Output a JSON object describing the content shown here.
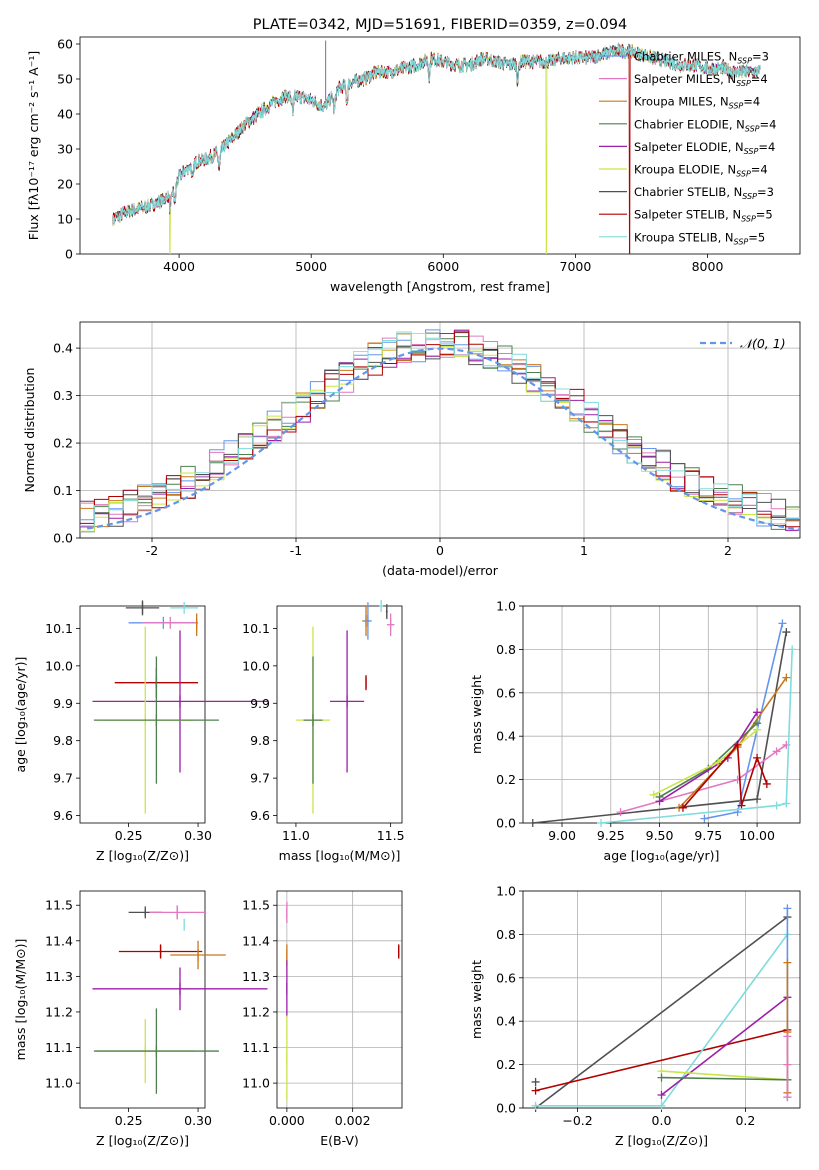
{
  "colors": {
    "chabrier_miles": "#6495ed",
    "salpeter_miles": "#e377c2",
    "kroupa_miles": "#c8781a",
    "chabrier_elodie": "#4f7f4f",
    "salpeter_elodie": "#9b1fa8",
    "kroupa_elodie": "#c8e646",
    "chabrier_stelib": "#505050",
    "salpeter_stelib": "#b00000",
    "kroupa_stelib": "#7fdcdc",
    "gaussian": "#6495ed",
    "grid": "#b0b0b0"
  },
  "chart_data": [
    {
      "id": "spectrum",
      "type": "line",
      "title": "PLATE=0342, MJD=51691, FIBERID=0359, z=0.094",
      "xlabel": "wavelength [Angstrom, rest frame]",
      "ylabel": "Flux [fλ10⁻¹⁷ erg cm⁻² s⁻¹ A⁻¹]",
      "xlim": [
        3250,
        8700
      ],
      "ylim": [
        0,
        62
      ],
      "xticks": [
        4000,
        5000,
        6000,
        7000,
        8000
      ],
      "yticks": [
        0,
        10,
        20,
        30,
        40,
        50,
        60
      ],
      "legend_position": "top-right",
      "legend": [
        {
          "label": "Chabrier MILES, N",
          "sub": "SSP",
          "tail": "=3",
          "color_key": "chabrier_miles"
        },
        {
          "label": "Salpeter MILES, N",
          "sub": "SSP",
          "tail": "=4",
          "color_key": "salpeter_miles"
        },
        {
          "label": "Kroupa MILES, N",
          "sub": "SSP",
          "tail": "=4",
          "color_key": "kroupa_miles"
        },
        {
          "label": "Chabrier ELODIE, N",
          "sub": "SSP",
          "tail": "=4",
          "color_key": "chabrier_elodie"
        },
        {
          "label": "Salpeter ELODIE, N",
          "sub": "SSP",
          "tail": "=4",
          "color_key": "salpeter_elodie"
        },
        {
          "label": "Kroupa ELODIE, N",
          "sub": "SSP",
          "tail": "=4",
          "color_key": "kroupa_elodie"
        },
        {
          "label": "Chabrier STELIB, N",
          "sub": "SSP",
          "tail": "=3",
          "color_key": "chabrier_stelib"
        },
        {
          "label": "Salpeter STELIB, N",
          "sub": "SSP",
          "tail": "=5",
          "color_key": "salpeter_stelib"
        },
        {
          "label": "Kroupa STELIB, N",
          "sub": "SSP",
          "tail": "=5",
          "color_key": "kroupa_stelib"
        }
      ],
      "continuum": [
        [
          3500,
          10
        ],
        [
          3600,
          12
        ],
        [
          3700,
          13
        ],
        [
          3800,
          14
        ],
        [
          3900,
          16
        ],
        [
          3950,
          18
        ],
        [
          4000,
          22
        ],
        [
          4100,
          26
        ],
        [
          4200,
          27
        ],
        [
          4300,
          29
        ],
        [
          4400,
          33
        ],
        [
          4500,
          37
        ],
        [
          4600,
          40
        ],
        [
          4700,
          43
        ],
        [
          4800,
          45
        ],
        [
          4900,
          45
        ],
        [
          5000,
          44
        ],
        [
          5100,
          42
        ],
        [
          5200,
          47
        ],
        [
          5300,
          49
        ],
        [
          5400,
          50
        ],
        [
          5500,
          52
        ],
        [
          5600,
          52
        ],
        [
          5700,
          53
        ],
        [
          5800,
          54
        ],
        [
          5900,
          56
        ],
        [
          6000,
          55
        ],
        [
          6100,
          54
        ],
        [
          6200,
          54
        ],
        [
          6300,
          56
        ],
        [
          6400,
          55
        ],
        [
          6500,
          54
        ],
        [
          6600,
          55
        ],
        [
          6700,
          55
        ],
        [
          6800,
          55
        ],
        [
          6900,
          56
        ],
        [
          7000,
          56
        ],
        [
          7100,
          56
        ],
        [
          7200,
          57
        ],
        [
          7300,
          58
        ],
        [
          7400,
          58
        ],
        [
          7500,
          57
        ],
        [
          7600,
          56
        ],
        [
          7700,
          55
        ],
        [
          7800,
          54
        ],
        [
          7900,
          54
        ],
        [
          8000,
          53
        ],
        [
          8100,
          53
        ],
        [
          8200,
          52
        ],
        [
          8300,
          52
        ],
        [
          8400,
          52
        ]
      ],
      "absorption_lines": [
        3934,
        3969,
        4102,
        4304,
        4861,
        5175,
        5270,
        5893,
        6563
      ],
      "spike": {
        "x": 5110,
        "y": 61
      },
      "edge_drops": [
        {
          "series": "kroupa_elodie",
          "x": 3930
        },
        {
          "series": "kroupa_elodie",
          "x": 6780
        },
        {
          "series": "salpeter_stelib",
          "x": 7410
        }
      ]
    },
    {
      "id": "residuals",
      "type": "histogram",
      "xlabel": "(data-model)/error",
      "ylabel": "Normed distribution",
      "xlim": [
        -2.5,
        2.5
      ],
      "ylim": [
        0,
        0.455
      ],
      "xticks": [
        -2,
        -1,
        0,
        1,
        2
      ],
      "yticks": [
        0.0,
        0.1,
        0.2,
        0.3,
        0.4
      ],
      "legend_position": "top-right",
      "legend_label": "𝒩(0, 1)",
      "bin_width": 0.1,
      "bin_start": -2.5
    },
    {
      "id": "z_age",
      "type": "scatter",
      "xlabel": "Z [log₁₀(Z/Z⊙)]",
      "ylabel": "age  [log₁₀(age/yr)]",
      "xlim": [
        0.215,
        0.305
      ],
      "ylim": [
        9.58,
        10.16
      ],
      "xticks": [
        0.25,
        0.3
      ],
      "yticks": [
        9.6,
        9.7,
        9.8,
        9.9,
        10.0,
        10.1
      ],
      "points": [
        {
          "color_key": "chabrier_stelib",
          "x": 0.26,
          "xerr": 0.012,
          "y": 10.155,
          "yerr": 0.02
        },
        {
          "color_key": "kroupa_stelib",
          "x": 0.29,
          "xerr": 0.01,
          "y": 10.155,
          "yerr": 0.0
        },
        {
          "color_key": "chabrier_miles",
          "x": 0.275,
          "xerr": 0.025,
          "y": 10.115,
          "yerr": 0.0
        },
        {
          "color_key": "salpeter_miles",
          "x": 0.28,
          "xerr": 0.02,
          "y": 10.115,
          "yerr": 0.0
        },
        {
          "color_key": "kroupa_miles",
          "x": 0.299,
          "xerr": 0.0,
          "y": 10.11,
          "yerr": 0.03
        },
        {
          "color_key": "salpeter_stelib",
          "x": 0.27,
          "xerr": 0.03,
          "y": 9.955,
          "yerr": 0.04
        },
        {
          "color_key": "salpeter_elodie",
          "x": 0.287,
          "xerr": 0.063,
          "y": 9.905,
          "yerr": 0.19
        },
        {
          "color_key": "kroupa_elodie",
          "x": 0.262,
          "xerr": 0.035,
          "y": 9.855,
          "yerr": 0.25
        },
        {
          "color_key": "chabrier_elodie",
          "x": 0.27,
          "xerr": 0.045,
          "y": 9.855,
          "yerr": 0.17
        }
      ]
    },
    {
      "id": "mass_age",
      "type": "scatter",
      "xlabel": "mass [log₁₀(M/M⊙)]",
      "ylabel": "",
      "xlim": [
        10.9,
        11.56
      ],
      "ylim": [
        9.58,
        10.16
      ],
      "xticks": [
        11.0,
        11.5
      ],
      "yticks": [
        9.6,
        9.7,
        9.8,
        9.9,
        10.0,
        10.1
      ],
      "points": [
        {
          "color_key": "kroupa_stelib",
          "x": 11.45,
          "xerr": 0.01,
          "y": 10.16,
          "yerr": 0.0
        },
        {
          "color_key": "chabrier_stelib",
          "x": 11.48,
          "xerr": 0.005,
          "y": 10.145,
          "yerr": 0.02
        },
        {
          "color_key": "kroupa_miles",
          "x": 11.37,
          "xerr": 0.02,
          "y": 10.12,
          "yerr": 0.04
        },
        {
          "color_key": "chabrier_miles",
          "x": 11.38,
          "xerr": 0.02,
          "y": 10.12,
          "yerr": 0.05
        },
        {
          "color_key": "salpeter_miles",
          "x": 11.5,
          "xerr": 0.02,
          "y": 10.11,
          "yerr": 0.03
        },
        {
          "color_key": "salpeter_stelib",
          "x": 11.37,
          "xerr": 0.0,
          "y": 9.955,
          "yerr": 0.02
        },
        {
          "color_key": "salpeter_elodie",
          "x": 11.27,
          "xerr": 0.09,
          "y": 9.905,
          "yerr": 0.19
        },
        {
          "color_key": "kroupa_elodie",
          "x": 11.09,
          "xerr": 0.09,
          "y": 9.855,
          "yerr": 0.25
        },
        {
          "color_key": "chabrier_elodie",
          "x": 11.09,
          "xerr": 0.05,
          "y": 9.855,
          "yerr": 0.17
        }
      ]
    },
    {
      "id": "age_weight",
      "type": "line",
      "xlabel": "age  [log₁₀(age/yr)]",
      "ylabel": "mass weight",
      "xlim": [
        8.8,
        10.22
      ],
      "ylim": [
        0,
        1.0
      ],
      "xticks": [
        9.0,
        9.25,
        9.5,
        9.75,
        10.0
      ],
      "yticks": [
        0.0,
        0.2,
        0.4,
        0.6,
        0.8,
        1.0
      ],
      "series": [
        {
          "color_key": "chabrier_stelib",
          "points": [
            [
              8.85,
              0.0
            ],
            [
              10.0,
              0.11
            ],
            [
              10.15,
              0.88
            ]
          ]
        },
        {
          "color_key": "chabrier_miles",
          "points": [
            [
              9.73,
              0.02
            ],
            [
              9.9,
              0.05
            ],
            [
              10.13,
              0.92
            ]
          ]
        },
        {
          "color_key": "salpeter_miles",
          "points": [
            [
              9.3,
              0.05
            ],
            [
              9.9,
              0.2
            ],
            [
              10.1,
              0.33
            ],
            [
              10.15,
              0.36
            ]
          ]
        },
        {
          "color_key": "kroupa_miles",
          "points": [
            [
              9.6,
              0.07
            ],
            [
              9.9,
              0.35
            ],
            [
              10.15,
              0.67
            ]
          ]
        },
        {
          "color_key": "chabrier_elodie",
          "points": [
            [
              9.5,
              0.12
            ],
            [
              9.75,
              0.25
            ],
            [
              10.0,
              0.46
            ]
          ]
        },
        {
          "color_key": "salpeter_elodie",
          "points": [
            [
              9.5,
              0.1
            ],
            [
              9.85,
              0.3
            ],
            [
              10.0,
              0.51
            ]
          ]
        },
        {
          "color_key": "kroupa_elodie",
          "points": [
            [
              9.47,
              0.13
            ],
            [
              9.8,
              0.28
            ],
            [
              10.0,
              0.43
            ]
          ]
        },
        {
          "color_key": "salpeter_stelib",
          "points": [
            [
              9.62,
              0.07
            ],
            [
              9.9,
              0.36
            ],
            [
              9.92,
              0.08
            ],
            [
              10.0,
              0.3
            ],
            [
              10.05,
              0.18
            ]
          ]
        },
        {
          "color_key": "kroupa_stelib",
          "points": [
            [
              9.2,
              0.0
            ],
            [
              10.1,
              0.08
            ],
            [
              10.15,
              0.09
            ],
            [
              10.18,
              0.8
            ]
          ]
        }
      ]
    },
    {
      "id": "z_mass",
      "type": "scatter",
      "xlabel": "Z [log₁₀(Z/Z⊙)]",
      "ylabel": "mass [log₁₀(M/M⊙)]",
      "xlim": [
        0.215,
        0.305
      ],
      "ylim": [
        10.93,
        11.54
      ],
      "xticks": [
        0.25,
        0.3
      ],
      "yticks": [
        11.0,
        11.1,
        11.2,
        11.3,
        11.4,
        11.5
      ],
      "points": [
        {
          "color_key": "chabrier_stelib",
          "x": 0.262,
          "xerr": 0.012,
          "y": 11.48,
          "yerr": 0.01
        },
        {
          "color_key": "salpeter_miles",
          "x": 0.285,
          "xerr": 0.02,
          "y": 11.48,
          "yerr": 0.02
        },
        {
          "color_key": "kroupa_stelib",
          "x": 0.29,
          "xerr": 0.0,
          "y": 11.445,
          "yerr": 0.0
        },
        {
          "color_key": "salpeter_stelib",
          "x": 0.273,
          "xerr": 0.03,
          "y": 11.37,
          "yerr": 0.02
        },
        {
          "color_key": "kroupa_miles",
          "x": 0.3,
          "xerr": 0.02,
          "y": 11.36,
          "yerr": 0.04
        },
        {
          "color_key": "salpeter_elodie",
          "x": 0.287,
          "xerr": 0.063,
          "y": 11.265,
          "yerr": 0.06
        },
        {
          "color_key": "kroupa_elodie",
          "x": 0.262,
          "xerr": 0.035,
          "y": 11.09,
          "yerr": 0.09
        },
        {
          "color_key": "chabrier_elodie",
          "x": 0.27,
          "xerr": 0.045,
          "y": 11.09,
          "yerr": 0.12
        }
      ]
    },
    {
      "id": "ebv_mass",
      "type": "scatter",
      "xlabel": "E(B-V)",
      "ylabel": "",
      "xlim": [
        -0.0003,
        0.0035
      ],
      "ylim": [
        10.93,
        11.54
      ],
      "xticks": [
        0.0,
        0.002
      ],
      "xtick_labels": [
        "0.000",
        "0.002"
      ],
      "yticks": [
        11.0,
        11.1,
        11.2,
        11.3,
        11.4,
        11.5
      ],
      "points": [
        {
          "color_key": "salpeter_miles",
          "x": 0.0,
          "xerr": 0.0,
          "y": 11.48,
          "yerr": 0.03
        },
        {
          "color_key": "kroupa_miles",
          "x": 0.0,
          "xerr": 0.0,
          "y": 11.36,
          "yerr": 0.03
        },
        {
          "color_key": "salpeter_elodie",
          "x": 0.0,
          "xerr": 0.0,
          "y": 11.265,
          "yerr": 0.08
        },
        {
          "color_key": "kroupa_elodie",
          "x": 0.0,
          "xerr": 0.0,
          "y": 11.07,
          "yerr": 0.12
        },
        {
          "color_key": "salpeter_stelib",
          "x": 0.0034,
          "xerr": 0.0,
          "y": 11.37,
          "yerr": 0.02
        }
      ]
    },
    {
      "id": "z_weight",
      "type": "line",
      "xlabel": "Z [log₁₀(Z/Z⊙)]",
      "ylabel": "mass weight",
      "xlim": [
        -0.33,
        0.33
      ],
      "ylim": [
        0,
        1.0
      ],
      "xticks": [
        -0.2,
        0.0,
        0.2
      ],
      "xtick_labels": [
        "−0.2",
        "0.0",
        "0.2"
      ],
      "yticks": [
        0.0,
        0.2,
        0.4,
        0.6,
        0.8,
        1.0
      ],
      "series": [
        {
          "color_key": "chabrier_stelib",
          "points": [
            [
              -0.3,
              0.0
            ],
            [
              0.3,
              0.88
            ]
          ]
        },
        {
          "color_key": "chabrier_stelib",
          "points": [
            [
              -0.3,
              0.12
            ]
          ]
        },
        {
          "color_key": "salpeter_stelib",
          "points": [
            [
              -0.3,
              0.08
            ],
            [
              0.3,
              0.36
            ]
          ]
        },
        {
          "color_key": "kroupa_stelib",
          "points": [
            [
              -0.3,
              0.01
            ],
            [
              0.0,
              0.01
            ],
            [
              0.3,
              0.8
            ]
          ]
        },
        {
          "color_key": "salpeter_elodie",
          "points": [
            [
              0.0,
              0.06
            ],
            [
              0.3,
              0.51
            ]
          ]
        },
        {
          "color_key": "kroupa_elodie",
          "points": [
            [
              0.0,
              0.17
            ],
            [
              0.3,
              0.13
            ]
          ]
        },
        {
          "color_key": "chabrier_elodie",
          "points": [
            [
              0.0,
              0.14
            ],
            [
              0.3,
              0.13
            ]
          ]
        },
        {
          "color_key": "chabrier_miles",
          "points": [
            [
              0.3,
              0.92
            ],
            [
              0.3,
              0.05
            ]
          ]
        },
        {
          "color_key": "kroupa_miles",
          "points": [
            [
              0.3,
              0.67
            ],
            [
              0.3,
              0.35
            ],
            [
              0.3,
              0.07
            ]
          ]
        },
        {
          "color_key": "salpeter_miles",
          "points": [
            [
              0.3,
              0.33
            ],
            [
              0.3,
              0.2
            ],
            [
              0.3,
              0.05
            ]
          ]
        }
      ]
    }
  ]
}
